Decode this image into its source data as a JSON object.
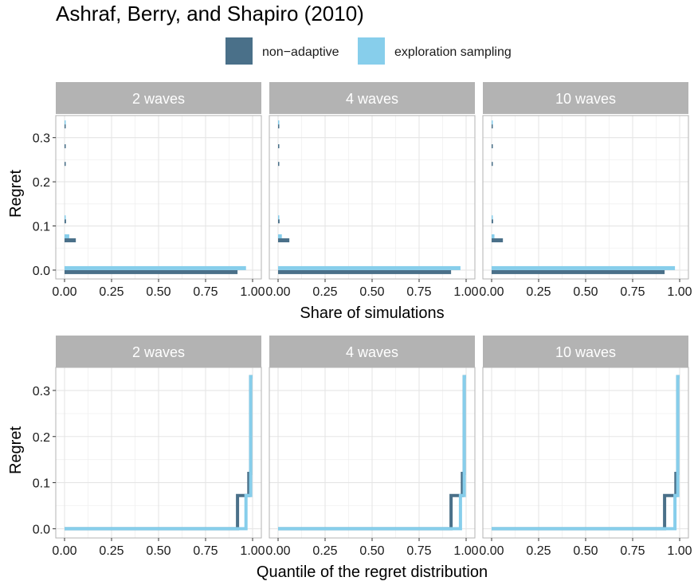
{
  "title": "Ashraf, Berry, and Shapiro (2010)",
  "legend": {
    "position": "top",
    "items": [
      {
        "label": "non−adaptive",
        "color": "#4a7089"
      },
      {
        "label": "exploration sampling",
        "color": "#87ceeb"
      }
    ]
  },
  "colors": {
    "non_adaptive": "#4a7089",
    "exploration": "#87ceeb",
    "strip_bg": "#b3b3b3",
    "grid": "#e5e5e5"
  },
  "chart_data": [
    {
      "type": "bar",
      "orientation": "horizontal",
      "xlabel": "Share of simulations",
      "ylabel": "Regret",
      "xlim": [
        0,
        1
      ],
      "ylim": [
        -0.02,
        0.35
      ],
      "xticks": [
        "0.00",
        "0.25",
        "0.50",
        "0.75",
        "1.00"
      ],
      "yticks": [
        "0.0",
        "0.1",
        "0.2",
        "0.3"
      ],
      "grid": true,
      "panels": [
        {
          "facet": "2 waves",
          "series": [
            {
              "name": "non−adaptive",
              "points": [
                {
                  "regret": 0.0,
                  "share": 0.92
                },
                {
                  "regret": 0.072,
                  "share": 0.06
                },
                {
                  "regret": 0.115,
                  "share": 0.008
                },
                {
                  "regret": 0.245,
                  "share": 0.003
                },
                {
                  "regret": 0.285,
                  "share": 0.003
                },
                {
                  "regret": 0.33,
                  "share": 0.003
                }
              ]
            },
            {
              "name": "exploration sampling",
              "points": [
                {
                  "regret": 0.0,
                  "share": 0.965
                },
                {
                  "regret": 0.072,
                  "share": 0.025
                },
                {
                  "regret": 0.115,
                  "share": 0.005
                },
                {
                  "regret": 0.33,
                  "share": 0.003
                }
              ]
            }
          ]
        },
        {
          "facet": "4 waves",
          "series": [
            {
              "name": "non−adaptive",
              "points": [
                {
                  "regret": 0.0,
                  "share": 0.92
                },
                {
                  "regret": 0.072,
                  "share": 0.06
                },
                {
                  "regret": 0.115,
                  "share": 0.008
                },
                {
                  "regret": 0.245,
                  "share": 0.003
                },
                {
                  "regret": 0.285,
                  "share": 0.003
                },
                {
                  "regret": 0.33,
                  "share": 0.003
                }
              ]
            },
            {
              "name": "exploration sampling",
              "points": [
                {
                  "regret": 0.0,
                  "share": 0.97
                },
                {
                  "regret": 0.072,
                  "share": 0.02
                },
                {
                  "regret": 0.115,
                  "share": 0.005
                },
                {
                  "regret": 0.33,
                  "share": 0.003
                }
              ]
            }
          ]
        },
        {
          "facet": "10 waves",
          "series": [
            {
              "name": "non−adaptive",
              "points": [
                {
                  "regret": 0.0,
                  "share": 0.92
                },
                {
                  "regret": 0.072,
                  "share": 0.06
                },
                {
                  "regret": 0.115,
                  "share": 0.008
                },
                {
                  "regret": 0.245,
                  "share": 0.003
                },
                {
                  "regret": 0.285,
                  "share": 0.003
                },
                {
                  "regret": 0.33,
                  "share": 0.003
                }
              ]
            },
            {
              "name": "exploration sampling",
              "points": [
                {
                  "regret": 0.0,
                  "share": 0.975
                },
                {
                  "regret": 0.072,
                  "share": 0.015
                },
                {
                  "regret": 0.115,
                  "share": 0.005
                },
                {
                  "regret": 0.33,
                  "share": 0.003
                }
              ]
            }
          ]
        }
      ]
    },
    {
      "type": "line",
      "step": true,
      "xlabel": "Quantile of the regret distribution",
      "ylabel": "Regret",
      "xlim": [
        0,
        1
      ],
      "ylim": [
        -0.02,
        0.35
      ],
      "xticks": [
        "0.00",
        "0.25",
        "0.50",
        "0.75",
        "1.00"
      ],
      "yticks": [
        "0.0",
        "0.1",
        "0.2",
        "0.3"
      ],
      "grid": true,
      "panels": [
        {
          "facet": "2 waves",
          "series": [
            {
              "name": "non−adaptive",
              "points": [
                [
                  0,
                  0
                ],
                [
                  0.92,
                  0
                ],
                [
                  0.92,
                  0.072
                ],
                [
                  0.98,
                  0.072
                ],
                [
                  0.98,
                  0.12
                ],
                [
                  0.99,
                  0.12
                ],
                [
                  0.99,
                  0.33
                ],
                [
                  1.0,
                  0.33
                ]
              ]
            },
            {
              "name": "exploration sampling",
              "points": [
                [
                  0,
                  0
                ],
                [
                  0.965,
                  0
                ],
                [
                  0.965,
                  0.072
                ],
                [
                  0.99,
                  0.072
                ],
                [
                  0.99,
                  0.33
                ],
                [
                  1.0,
                  0.33
                ]
              ]
            }
          ]
        },
        {
          "facet": "4 waves",
          "series": [
            {
              "name": "non−adaptive",
              "points": [
                [
                  0,
                  0
                ],
                [
                  0.92,
                  0
                ],
                [
                  0.92,
                  0.072
                ],
                [
                  0.98,
                  0.072
                ],
                [
                  0.98,
                  0.12
                ],
                [
                  0.99,
                  0.12
                ],
                [
                  0.99,
                  0.33
                ],
                [
                  1.0,
                  0.33
                ]
              ]
            },
            {
              "name": "exploration sampling",
              "points": [
                [
                  0,
                  0
                ],
                [
                  0.97,
                  0
                ],
                [
                  0.97,
                  0.072
                ],
                [
                  0.99,
                  0.072
                ],
                [
                  0.99,
                  0.33
                ],
                [
                  1.0,
                  0.33
                ]
              ]
            }
          ]
        },
        {
          "facet": "10 waves",
          "series": [
            {
              "name": "non−adaptive",
              "points": [
                [
                  0,
                  0
                ],
                [
                  0.92,
                  0
                ],
                [
                  0.92,
                  0.072
                ],
                [
                  0.98,
                  0.072
                ],
                [
                  0.98,
                  0.12
                ],
                [
                  0.99,
                  0.12
                ],
                [
                  0.99,
                  0.33
                ],
                [
                  1.0,
                  0.33
                ]
              ]
            },
            {
              "name": "exploration sampling",
              "points": [
                [
                  0,
                  0
                ],
                [
                  0.975,
                  0
                ],
                [
                  0.975,
                  0.072
                ],
                [
                  0.99,
                  0.072
                ],
                [
                  0.99,
                  0.33
                ],
                [
                  1.0,
                  0.33
                ]
              ]
            }
          ]
        }
      ]
    }
  ]
}
